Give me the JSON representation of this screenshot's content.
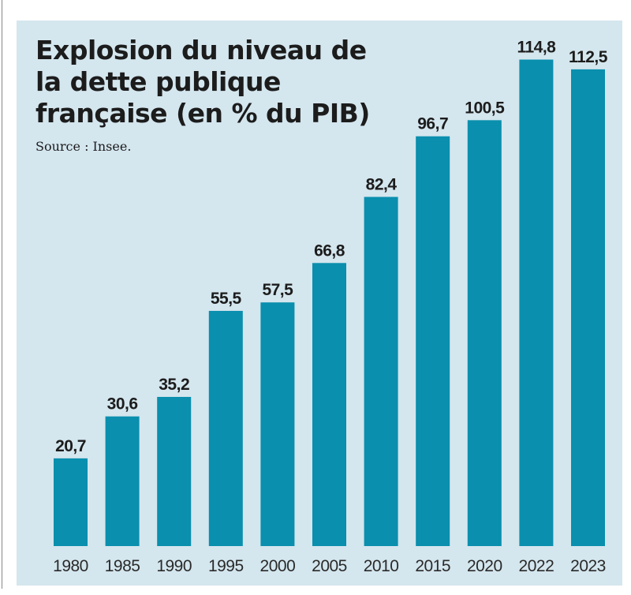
{
  "chart_data": {
    "type": "bar",
    "title": "Explosion du niveau de la dette publique française (en % du PIB)",
    "source": "Source : Insee.",
    "categories": [
      "1980",
      "1985",
      "1990",
      "1995",
      "2000",
      "2005",
      "2010",
      "2015",
      "2020",
      "2022",
      "2023"
    ],
    "values": [
      20.7,
      30.6,
      35.2,
      55.5,
      57.5,
      66.8,
      82.4,
      96.7,
      100.5,
      114.8,
      112.5
    ],
    "value_labels": [
      "20,7",
      "30,6",
      "35,2",
      "55,5",
      "57,5",
      "66,8",
      "82,4",
      "96,7",
      "100,5",
      "114,8",
      "112,5"
    ],
    "xlabel": "",
    "ylabel": "",
    "ylim": [
      0,
      115
    ],
    "grid": false,
    "colors": {
      "bar": "#0a8fae",
      "background": "#d4e6ee",
      "text": "#1c1c1c"
    }
  }
}
